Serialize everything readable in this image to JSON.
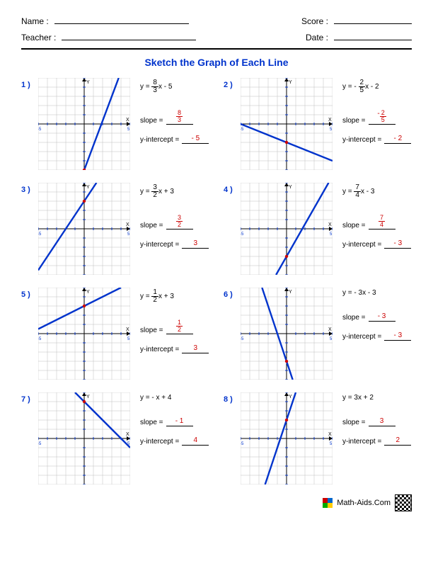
{
  "header": {
    "name_label": "Name :",
    "teacher_label": "Teacher :",
    "score_label": "Score :",
    "date_label": "Date :"
  },
  "title": "Sketch the Graph of Each Line",
  "labels": {
    "slope": "slope =",
    "yint": "y-intercept ="
  },
  "grid_style": {
    "size": 130,
    "extent": 5,
    "grid_color": "#bfbfbf",
    "grid_width": 0.5,
    "axis_color": "#000000",
    "axis_width": 1,
    "tick_color": "#0033cc",
    "axis_label_color": "#000000",
    "line_color": "#0033cc",
    "line_width": 2.4,
    "intercept_color": "#cc0000",
    "intercept_radius": 2.2,
    "answer_color": "#cc0000",
    "number_color": "#0033cc"
  },
  "problems": [
    {
      "n": "1 )",
      "eq_pre": "y = ",
      "eq_num": "8",
      "eq_den": "3",
      "eq_post": "x - 5",
      "slope_num": "8",
      "slope_den": "3",
      "slope_plain": null,
      "yint": "- 5",
      "m": 2.6667,
      "b": -5
    },
    {
      "n": "2 )",
      "eq_pre": "y = - ",
      "eq_num": "2",
      "eq_den": "5",
      "eq_post": "x - 2",
      "slope_num": "2",
      "slope_den": "5",
      "slope_neg": "- ",
      "slope_plain": null,
      "yint": "- 2",
      "m": -0.4,
      "b": -2
    },
    {
      "n": "3 )",
      "eq_pre": "y = ",
      "eq_num": "3",
      "eq_den": "2",
      "eq_post": "x + 3",
      "slope_num": "3",
      "slope_den": "2",
      "slope_plain": null,
      "yint": "3",
      "m": 1.5,
      "b": 3
    },
    {
      "n": "4 )",
      "eq_pre": "y = ",
      "eq_num": "7",
      "eq_den": "4",
      "eq_post": "x - 3",
      "slope_num": "7",
      "slope_den": "4",
      "slope_plain": null,
      "yint": "- 3",
      "m": 1.75,
      "b": -3
    },
    {
      "n": "5 )",
      "eq_pre": "y = ",
      "eq_num": "1",
      "eq_den": "2",
      "eq_post": "x + 3",
      "slope_num": "1",
      "slope_den": "2",
      "slope_plain": null,
      "yint": "3",
      "m": 0.5,
      "b": 3
    },
    {
      "n": "6 )",
      "eq_pre": "y = ",
      "eq_num": null,
      "eq_den": null,
      "eq_post": "- 3x - 3",
      "slope_num": null,
      "slope_den": null,
      "slope_plain": "- 3",
      "yint": "- 3",
      "m": -3,
      "b": -3
    },
    {
      "n": "7 )",
      "eq_pre": "y = ",
      "eq_num": null,
      "eq_den": null,
      "eq_post": "- x + 4",
      "slope_num": null,
      "slope_den": null,
      "slope_plain": "- 1",
      "yint": "4",
      "m": -1,
      "b": 4
    },
    {
      "n": "8 )",
      "eq_pre": "y = ",
      "eq_num": null,
      "eq_den": null,
      "eq_post": "3x + 2",
      "slope_num": null,
      "slope_den": null,
      "slope_plain": "3",
      "yint": "2",
      "m": 3,
      "b": 2
    }
  ],
  "footer": "Math-Aids.Com"
}
